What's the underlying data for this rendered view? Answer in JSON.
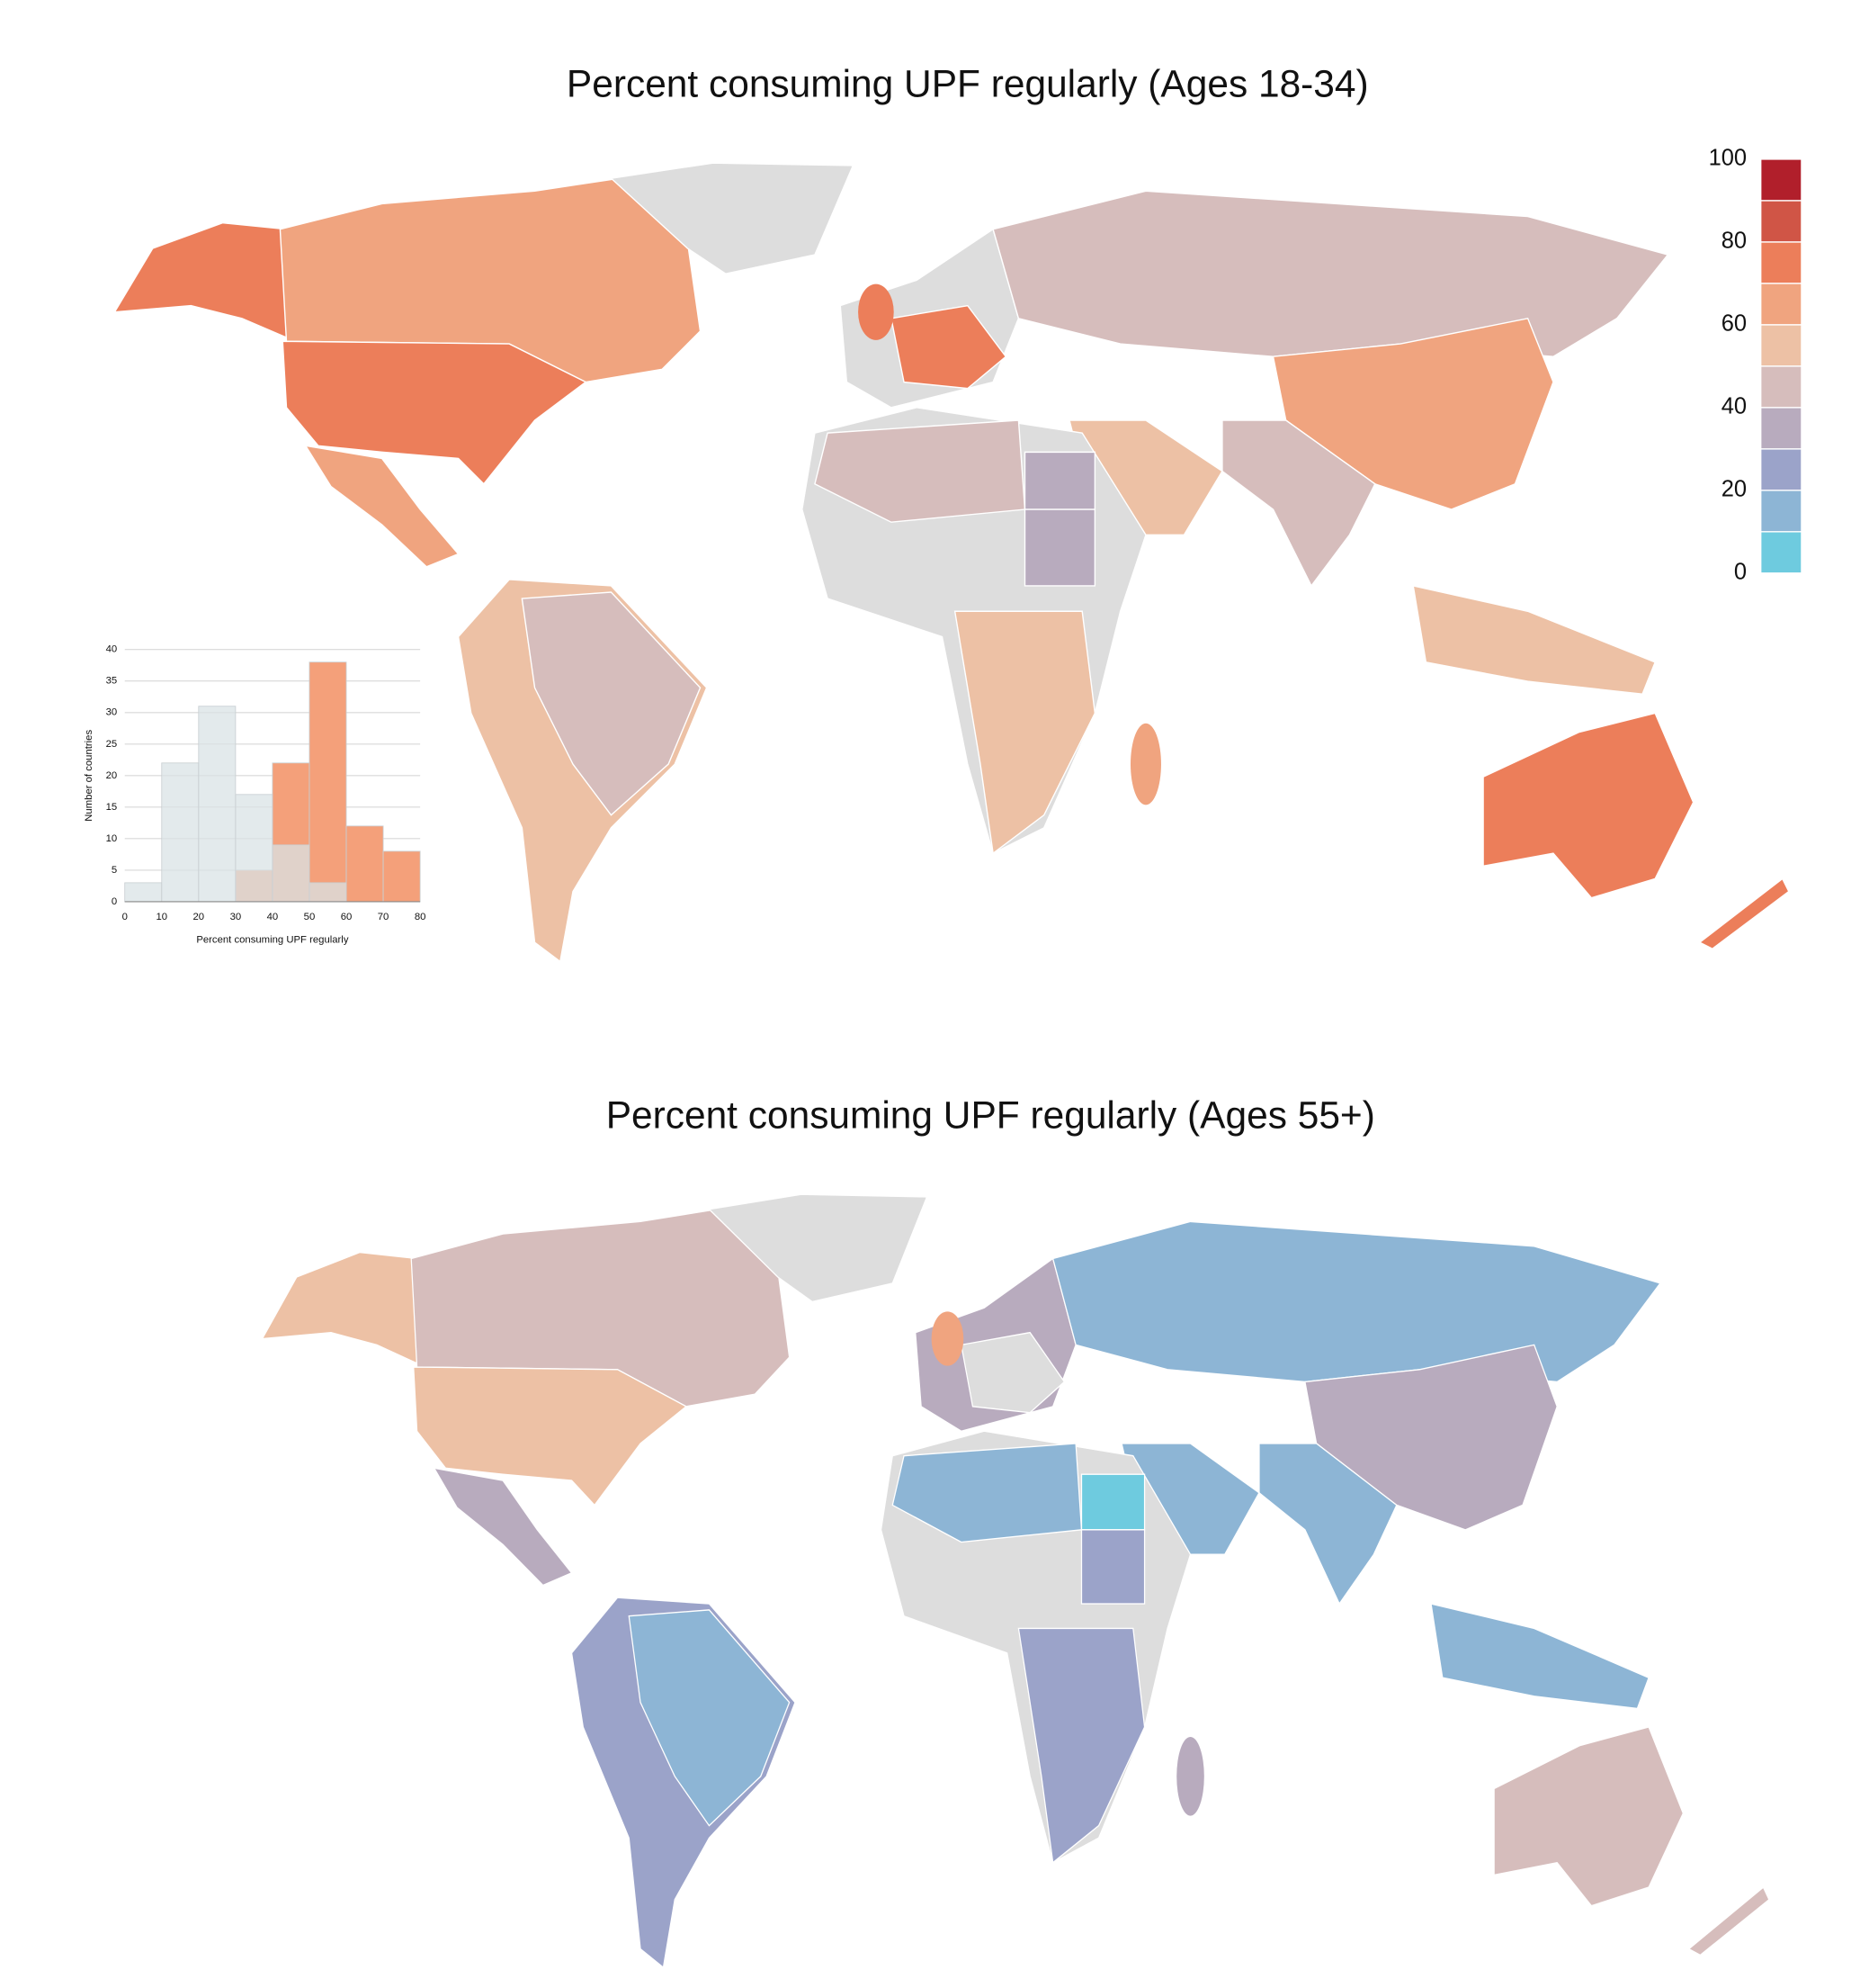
{
  "chart_data": [
    {
      "type": "map",
      "title": "Percent consuming UPF regularly (Ages 18-34)",
      "colorbar": {
        "clim": [
          0,
          100
        ],
        "ticks": [
          0,
          20,
          40,
          60,
          80,
          100
        ],
        "colors": [
          "#6ecbdf",
          "#8db5d5",
          "#9ba3c9",
          "#b8abbe",
          "#d6bdbc",
          "#edc1a5",
          "#f0a47f",
          "#ec7e5a",
          "#d05546",
          "#b11f2b"
        ]
      }
    },
    {
      "type": "map",
      "title": "Percent consuming UPF regularly (Ages 55+)"
    },
    {
      "type": "histogram",
      "xlabel": "Percent consuming UPF regularly",
      "ylabel": "Number of countries",
      "bins": [
        0,
        10,
        20,
        30,
        40,
        50,
        60,
        70,
        80
      ],
      "series": [
        {
          "color": "#f4a07a",
          "values": [
            0,
            0,
            0,
            5,
            22,
            38,
            12,
            8
          ]
        },
        {
          "color": "#d9e3e5",
          "values": [
            3,
            22,
            31,
            17,
            9,
            3,
            0,
            0
          ]
        }
      ],
      "xlim": [
        0,
        80
      ],
      "ylim": [
        0,
        40
      ],
      "xticks": [
        0,
        10,
        20,
        30,
        40,
        50,
        60,
        70,
        80
      ],
      "yticks": [
        0,
        5,
        10,
        15,
        20,
        25,
        30,
        35,
        40
      ],
      "grid": true
    }
  ]
}
